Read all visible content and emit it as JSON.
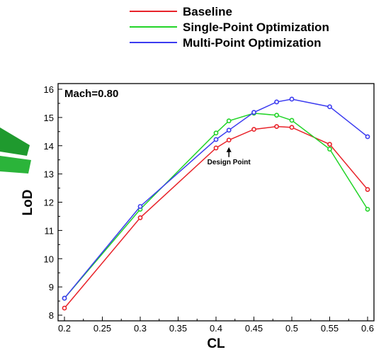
{
  "chart_data": {
    "type": "line",
    "xlabel": "CL",
    "ylabel": "LoD",
    "xlim": [
      0.2,
      0.6
    ],
    "ylim": [
      8,
      16
    ],
    "xticks": [
      "0.2",
      "0.25",
      "0.3",
      "0.35",
      "0.4",
      "0.45",
      "0.5",
      "0.55",
      "0.6"
    ],
    "yticks": [
      "8",
      "9",
      "10",
      "11",
      "12",
      "13",
      "14",
      "15",
      "16"
    ],
    "grid": false,
    "legend_position": "top",
    "series": [
      {
        "name": "Baseline",
        "color": "#e8232a",
        "x": [
          0.2,
          0.3,
          0.4,
          0.417,
          0.45,
          0.48,
          0.5,
          0.55,
          0.6
        ],
        "y": [
          8.25,
          11.45,
          13.92,
          14.2,
          14.58,
          14.68,
          14.65,
          14.05,
          12.45
        ]
      },
      {
        "name": "Single-Point Optimization",
        "color": "#22d428",
        "x": [
          0.2,
          0.3,
          0.4,
          0.417,
          0.45,
          0.48,
          0.5,
          0.55,
          0.6
        ],
        "y": [
          8.6,
          11.75,
          14.45,
          14.88,
          15.15,
          15.08,
          14.9,
          13.88,
          11.75
        ]
      },
      {
        "name": "Multi-Point Optimization",
        "color": "#3b3bf0",
        "x": [
          0.2,
          0.3,
          0.4,
          0.417,
          0.45,
          0.48,
          0.5,
          0.55,
          0.6
        ],
        "y": [
          8.6,
          11.85,
          14.22,
          14.55,
          15.18,
          15.55,
          15.65,
          15.38,
          14.32
        ]
      }
    ],
    "annotations": [
      {
        "text": "Mach=0.80",
        "kind": "inside-label"
      },
      {
        "text": "Design Point",
        "kind": "arrow",
        "x": 0.417,
        "y": 14.2
      }
    ]
  }
}
